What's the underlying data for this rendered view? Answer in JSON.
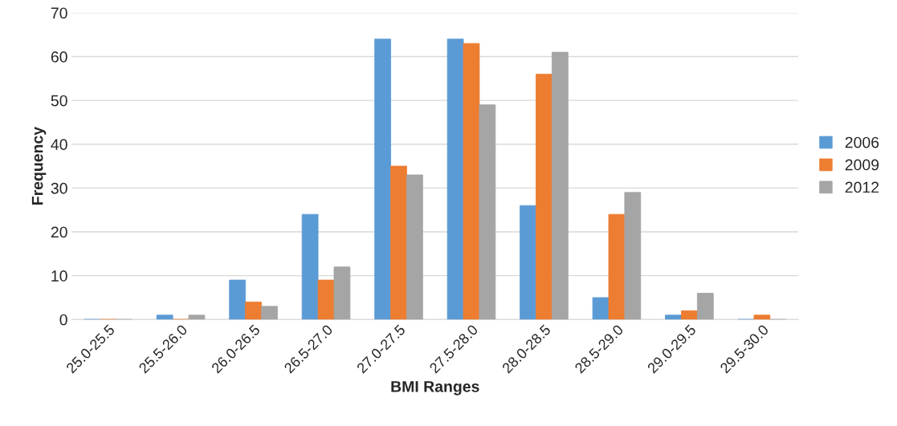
{
  "chart_data": {
    "type": "bar",
    "xlabel": "BMI Ranges",
    "ylabel": "Frequency",
    "categories": [
      "25.0-25.5",
      "25.5-26.0",
      "26.0-26.5",
      "26.5-27.0",
      "27.0-27.5",
      "27.5-28.0",
      "28.0-28.5",
      "28.5-29.0",
      "29.0-29.5",
      "29.5-30.0"
    ],
    "series": [
      {
        "name": "2006",
        "color": "#5b9bd5",
        "values": [
          0,
          1,
          9,
          24,
          64,
          64,
          26,
          5,
          1,
          0
        ]
      },
      {
        "name": "2009",
        "color": "#ed7d31",
        "values": [
          0,
          0,
          4,
          9,
          35,
          63,
          56,
          24,
          2,
          1
        ]
      },
      {
        "name": "2012",
        "color": "#a5a5a5",
        "values": [
          0,
          1,
          3,
          12,
          33,
          49,
          61,
          29,
          6,
          0
        ]
      }
    ],
    "ylim": [
      0,
      70
    ],
    "yticks": [
      0,
      10,
      20,
      30,
      40,
      50,
      60,
      70
    ],
    "grid": "y",
    "legend": "right"
  }
}
